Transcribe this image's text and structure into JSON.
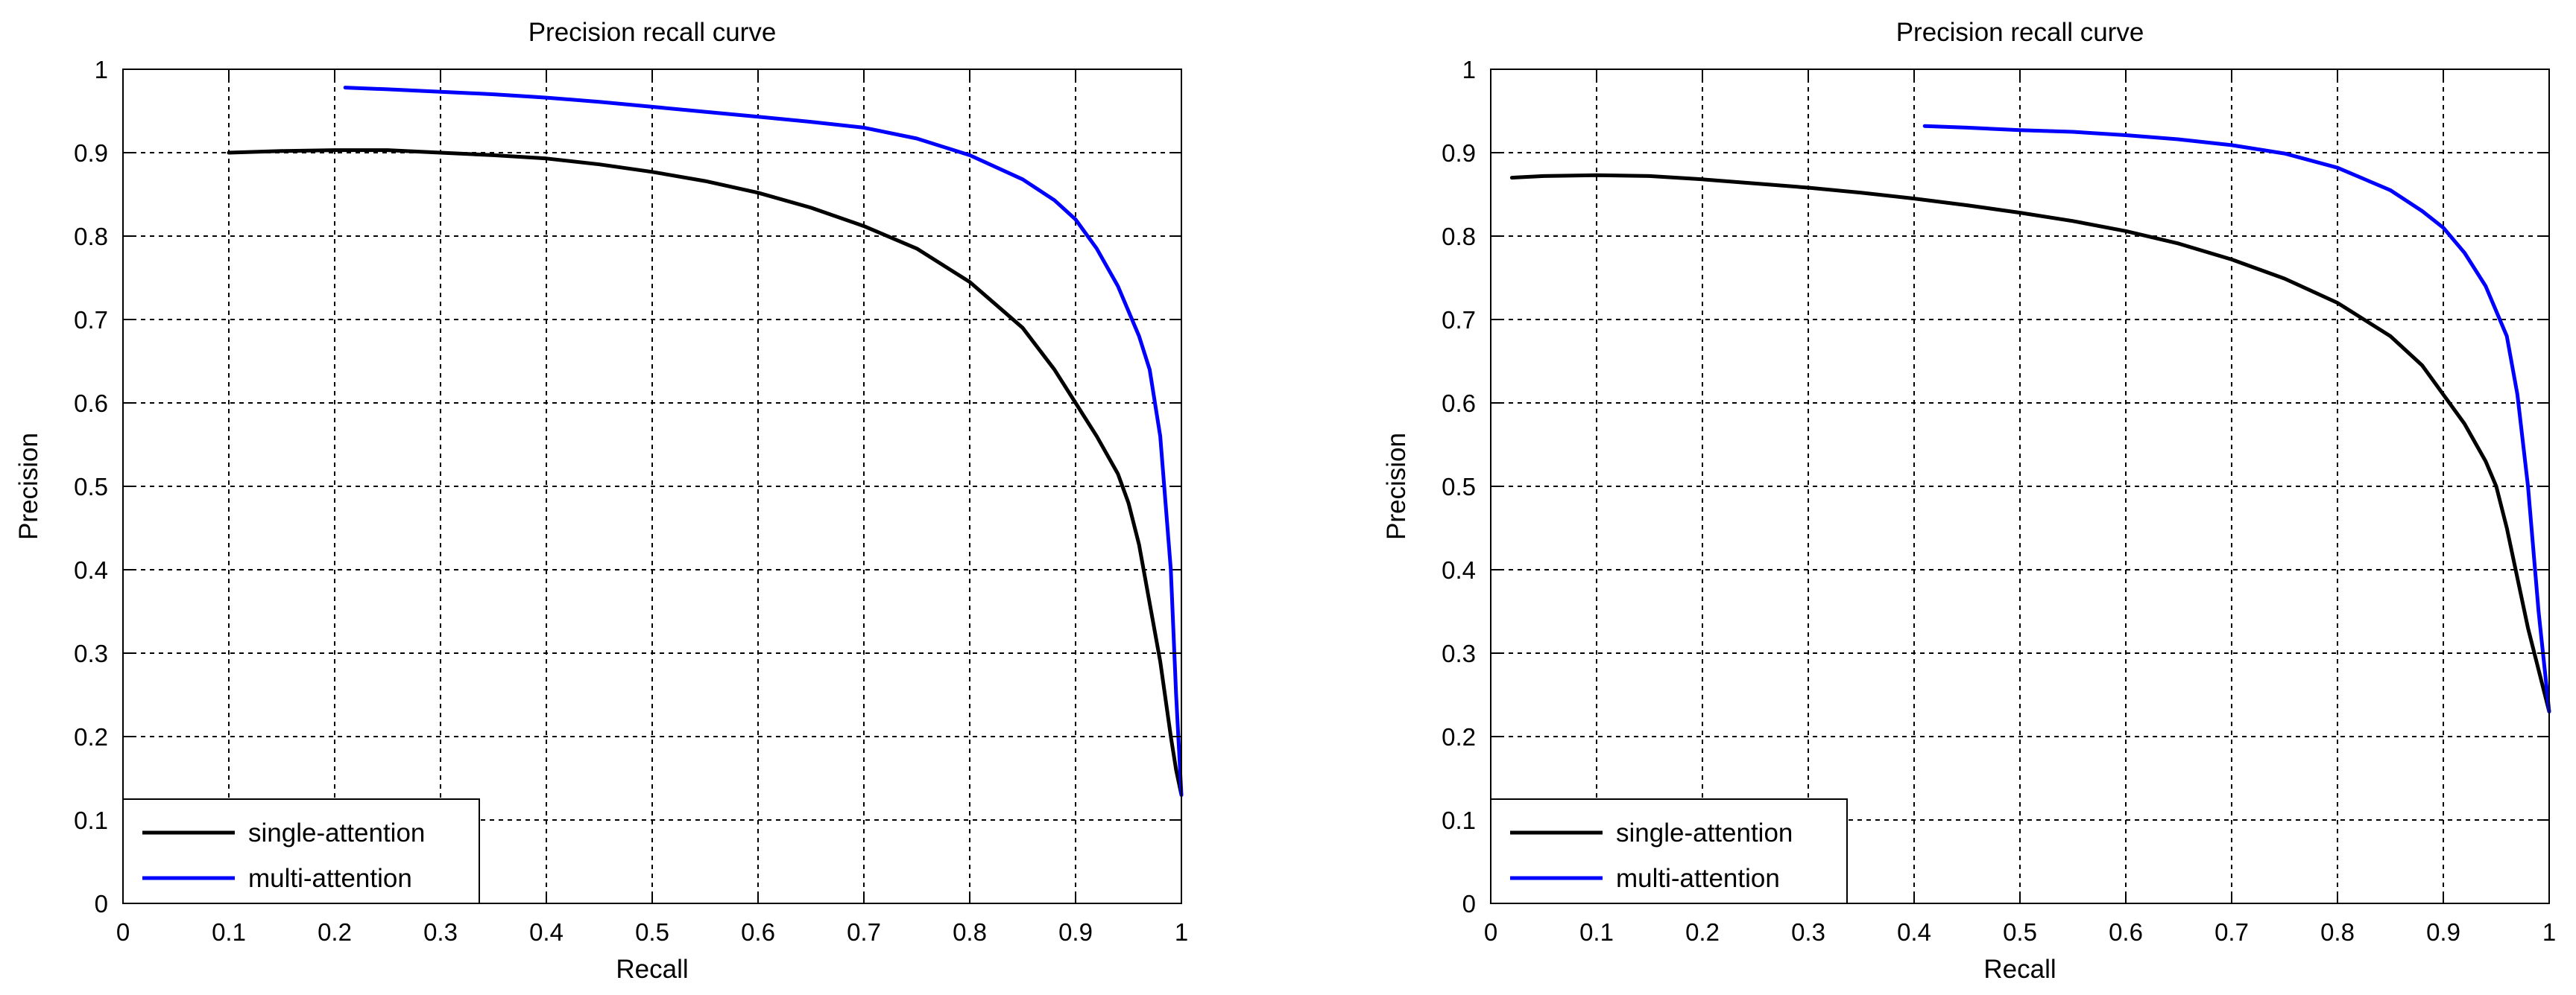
{
  "chart_data": [
    {
      "type": "line",
      "title": "Precision recall curve",
      "xlabel": "Recall",
      "ylabel": "Precision",
      "xlim": [
        0,
        1
      ],
      "ylim": [
        0,
        1
      ],
      "xticks": [
        "0",
        "0.1",
        "0.2",
        "0.3",
        "0.4",
        "0.5",
        "0.6",
        "0.7",
        "0.8",
        "0.9",
        "1"
      ],
      "yticks": [
        "0",
        "0.1",
        "0.2",
        "0.3",
        "0.4",
        "0.5",
        "0.6",
        "0.7",
        "0.8",
        "0.9",
        "1"
      ],
      "grid": true,
      "legend_position": "bottom-left",
      "series": [
        {
          "name": "single-attention",
          "color": "#000000",
          "x": [
            0.1,
            0.15,
            0.2,
            0.25,
            0.3,
            0.35,
            0.4,
            0.45,
            0.5,
            0.55,
            0.6,
            0.65,
            0.7,
            0.75,
            0.8,
            0.85,
            0.88,
            0.9,
            0.92,
            0.94,
            0.95,
            0.96,
            0.97,
            0.98,
            0.99,
            0.995,
            1.0
          ],
          "y": [
            0.9,
            0.902,
            0.903,
            0.903,
            0.9,
            0.897,
            0.893,
            0.886,
            0.877,
            0.866,
            0.852,
            0.834,
            0.812,
            0.785,
            0.745,
            0.69,
            0.64,
            0.6,
            0.56,
            0.515,
            0.48,
            0.43,
            0.36,
            0.29,
            0.2,
            0.16,
            0.13
          ]
        },
        {
          "name": "multi-attention",
          "color": "#0000ff",
          "x": [
            0.21,
            0.25,
            0.3,
            0.35,
            0.4,
            0.45,
            0.5,
            0.55,
            0.6,
            0.65,
            0.7,
            0.75,
            0.8,
            0.85,
            0.88,
            0.9,
            0.92,
            0.94,
            0.96,
            0.97,
            0.98,
            0.99,
            0.995,
            1.0
          ],
          "y": [
            0.978,
            0.976,
            0.973,
            0.97,
            0.966,
            0.961,
            0.955,
            0.949,
            0.943,
            0.937,
            0.93,
            0.917,
            0.897,
            0.868,
            0.843,
            0.82,
            0.785,
            0.74,
            0.68,
            0.64,
            0.56,
            0.4,
            0.25,
            0.13
          ]
        }
      ]
    },
    {
      "type": "line",
      "title": "Precision recall curve",
      "xlabel": "Recall",
      "ylabel": "Precision",
      "xlim": [
        0,
        1
      ],
      "ylim": [
        0,
        1
      ],
      "xticks": [
        "0",
        "0.1",
        "0.2",
        "0.3",
        "0.4",
        "0.5",
        "0.6",
        "0.7",
        "0.8",
        "0.9",
        "1"
      ],
      "yticks": [
        "0",
        "0.1",
        "0.2",
        "0.3",
        "0.4",
        "0.5",
        "0.6",
        "0.7",
        "0.8",
        "0.9",
        "1"
      ],
      "grid": true,
      "legend_position": "bottom-left",
      "series": [
        {
          "name": "single-attention",
          "color": "#000000",
          "x": [
            0.02,
            0.05,
            0.1,
            0.15,
            0.2,
            0.25,
            0.3,
            0.35,
            0.4,
            0.45,
            0.5,
            0.55,
            0.6,
            0.65,
            0.7,
            0.75,
            0.8,
            0.85,
            0.88,
            0.9,
            0.92,
            0.94,
            0.95,
            0.96,
            0.97,
            0.98,
            0.99,
            1.0
          ],
          "y": [
            0.87,
            0.872,
            0.873,
            0.872,
            0.868,
            0.863,
            0.858,
            0.852,
            0.845,
            0.837,
            0.828,
            0.818,
            0.806,
            0.791,
            0.772,
            0.749,
            0.72,
            0.68,
            0.645,
            0.61,
            0.575,
            0.53,
            0.5,
            0.45,
            0.39,
            0.33,
            0.28,
            0.23
          ]
        },
        {
          "name": "multi-attention",
          "color": "#0000ff",
          "x": [
            0.41,
            0.45,
            0.5,
            0.55,
            0.6,
            0.65,
            0.7,
            0.75,
            0.8,
            0.85,
            0.88,
            0.9,
            0.92,
            0.94,
            0.96,
            0.97,
            0.98,
            0.99,
            1.0
          ],
          "y": [
            0.932,
            0.93,
            0.927,
            0.925,
            0.921,
            0.916,
            0.909,
            0.899,
            0.882,
            0.855,
            0.83,
            0.81,
            0.78,
            0.74,
            0.68,
            0.61,
            0.5,
            0.35,
            0.23
          ]
        }
      ]
    }
  ]
}
